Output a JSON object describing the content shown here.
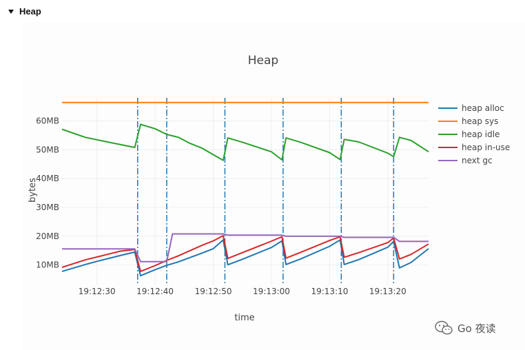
{
  "section": {
    "title": "Heap"
  },
  "watermark": {
    "text": "Go 夜读"
  },
  "chart_data": {
    "type": "line",
    "title": "Heap",
    "xlabel": "time",
    "ylabel": "bytes",
    "xrange": [
      "19:12:24",
      "19:13:27"
    ],
    "yrange": [
      3,
      68
    ],
    "x_ticks": [
      "19:12:30",
      "19:12:40",
      "19:12:50",
      "19:13:00",
      "19:13:10",
      "19:13:20"
    ],
    "y_ticks": [
      "10MB",
      "20MB",
      "30MB",
      "40MB",
      "50MB",
      "60MB"
    ],
    "gc_events": [
      "19:12:37",
      "19:12:42",
      "19:12:52",
      "19:13:02",
      "19:13:12",
      "19:13:21"
    ],
    "grid": true,
    "legend_position": "right",
    "series": [
      {
        "name": "heap alloc",
        "color": "#1f77b4",
        "points": [
          [
            "19:12:24",
            7.8
          ],
          [
            "19:12:26",
            9.0
          ],
          [
            "19:12:28",
            10.2
          ],
          [
            "19:12:30",
            11.3
          ],
          [
            "19:12:32",
            12.3
          ],
          [
            "19:12:34",
            13.3
          ],
          [
            "19:12:36.5",
            14.5
          ],
          [
            "19:12:37.5",
            6.3
          ],
          [
            "19:12:40",
            8.4
          ],
          [
            "19:12:42",
            9.9
          ],
          [
            "19:12:44",
            11.1
          ],
          [
            "19:12:46",
            12.6
          ],
          [
            "19:12:48",
            14.1
          ],
          [
            "19:12:50",
            15.7
          ],
          [
            "19:12:51.7",
            18.7
          ],
          [
            "19:12:52.5",
            10.1
          ],
          [
            "19:12:55",
            12.0
          ],
          [
            "19:13:00",
            16.1
          ],
          [
            "19:13:01.8",
            18.4
          ],
          [
            "19:13:02.5",
            10.2
          ],
          [
            "19:13:05",
            12.1
          ],
          [
            "19:13:10",
            16.5
          ],
          [
            "19:13:11.8",
            18.7
          ],
          [
            "19:13:12.5",
            10.2
          ],
          [
            "19:13:15",
            11.9
          ],
          [
            "19:13:20",
            16.2
          ],
          [
            "19:13:21",
            18.2
          ],
          [
            "19:13:22",
            9.0
          ],
          [
            "19:13:24",
            10.9
          ],
          [
            "19:13:27",
            15.7
          ]
        ]
      },
      {
        "name": "heap sys",
        "color": "#ff7f0e",
        "points": [
          [
            "19:12:24",
            66.4
          ],
          [
            "19:13:27",
            66.4
          ]
        ]
      },
      {
        "name": "heap idle",
        "color": "#2ca02c",
        "points": [
          [
            "19:12:24",
            57.1
          ],
          [
            "19:12:26",
            55.7
          ],
          [
            "19:12:28",
            54.3
          ],
          [
            "19:12:32",
            52.6
          ],
          [
            "19:12:36.5",
            50.8
          ],
          [
            "19:12:37.5",
            58.8
          ],
          [
            "19:12:40",
            57.3
          ],
          [
            "19:12:42",
            55.3
          ],
          [
            "19:12:44",
            54.3
          ],
          [
            "19:12:46",
            52.2
          ],
          [
            "19:12:48",
            50.6
          ],
          [
            "19:12:51.7",
            46.3
          ],
          [
            "19:12:52.5",
            54.1
          ],
          [
            "19:12:55",
            52.6
          ],
          [
            "19:13:00",
            49.3
          ],
          [
            "19:13:01.8",
            46.5
          ],
          [
            "19:13:02.5",
            54.1
          ],
          [
            "19:13:05",
            52.6
          ],
          [
            "19:13:10",
            49.0
          ],
          [
            "19:13:11.8",
            46.6
          ],
          [
            "19:13:12.5",
            53.6
          ],
          [
            "19:13:15",
            52.7
          ],
          [
            "19:13:20",
            48.8
          ],
          [
            "19:13:21",
            47.6
          ],
          [
            "19:13:22",
            54.3
          ],
          [
            "19:13:24",
            53.2
          ],
          [
            "19:13:27",
            49.3
          ]
        ]
      },
      {
        "name": "heap in-use",
        "color": "#d62728",
        "points": [
          [
            "19:12:24",
            9.2
          ],
          [
            "19:12:26",
            10.5
          ],
          [
            "19:12:28",
            11.8
          ],
          [
            "19:12:30",
            12.8
          ],
          [
            "19:12:32",
            13.8
          ],
          [
            "19:12:34",
            14.8
          ],
          [
            "19:12:36.5",
            15.4
          ],
          [
            "19:12:37.5",
            7.8
          ],
          [
            "19:12:40",
            9.8
          ],
          [
            "19:12:42",
            11.6
          ],
          [
            "19:12:44",
            13.2
          ],
          [
            "19:12:46",
            15.0
          ],
          [
            "19:12:48",
            16.8
          ],
          [
            "19:12:50",
            18.4
          ],
          [
            "19:12:51.7",
            20.2
          ],
          [
            "19:12:52.5",
            12.3
          ],
          [
            "19:12:55",
            14.3
          ],
          [
            "19:13:00",
            18.3
          ],
          [
            "19:13:01.8",
            19.8
          ],
          [
            "19:13:02.5",
            12.4
          ],
          [
            "19:13:05",
            14.4
          ],
          [
            "19:13:10",
            18.5
          ],
          [
            "19:13:11.8",
            19.8
          ],
          [
            "19:13:12.5",
            12.7
          ],
          [
            "19:13:15",
            14.3
          ],
          [
            "19:13:20",
            17.8
          ],
          [
            "19:13:21",
            19.4
          ],
          [
            "19:13:22",
            12.1
          ],
          [
            "19:13:24",
            13.7
          ],
          [
            "19:13:27",
            17.3
          ]
        ]
      },
      {
        "name": "next gc",
        "color": "#9467bd",
        "points": [
          [
            "19:12:24",
            15.6
          ],
          [
            "19:12:36.5",
            15.6
          ],
          [
            "19:12:37.5",
            11.2
          ],
          [
            "19:12:42",
            11.2
          ],
          [
            "19:12:43",
            20.8
          ],
          [
            "19:12:51.7",
            20.8
          ],
          [
            "19:12:52.5",
            20.4
          ],
          [
            "19:13:01.8",
            20.4
          ],
          [
            "19:13:02.5",
            20.0
          ],
          [
            "19:13:11.8",
            20.0
          ],
          [
            "19:13:12.5",
            19.6
          ],
          [
            "19:13:21",
            19.6
          ],
          [
            "19:13:22",
            18.2
          ],
          [
            "19:13:27",
            18.2
          ]
        ]
      }
    ]
  }
}
